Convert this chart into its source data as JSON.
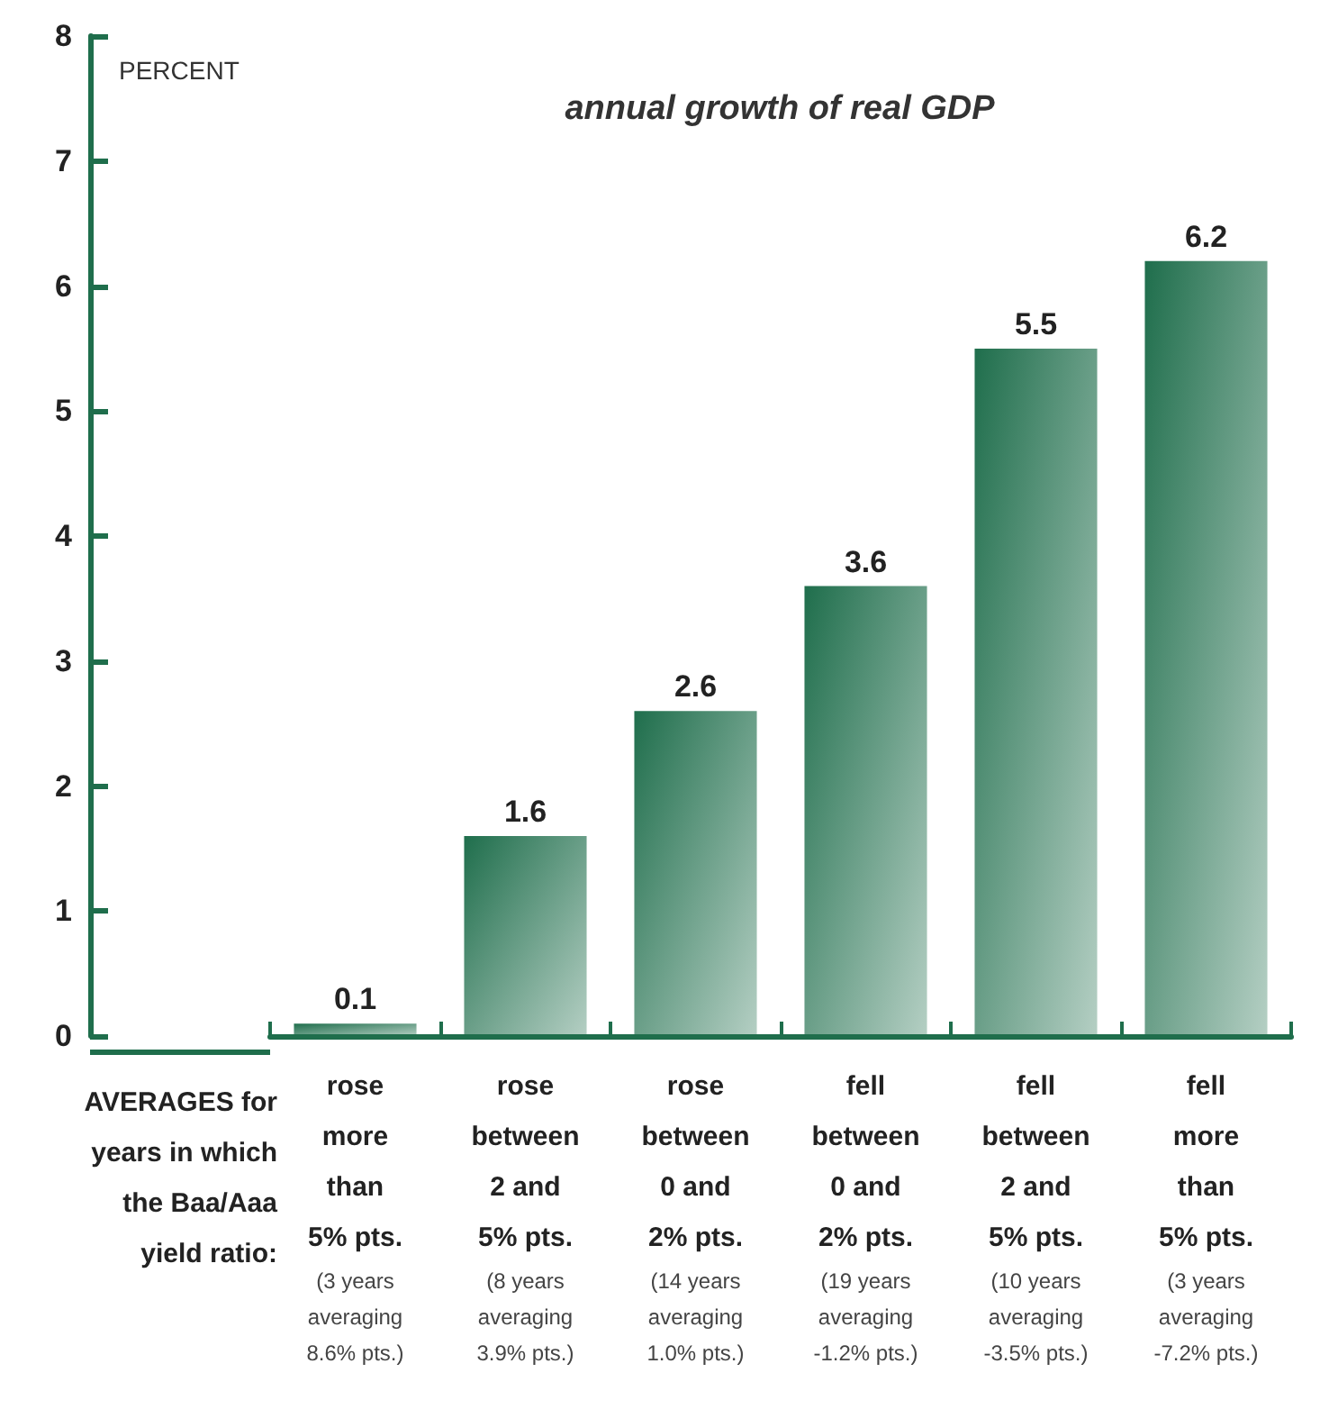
{
  "chart_data": {
    "type": "bar",
    "title": "annual growth of real GDP",
    "ylabel": "PERCENT",
    "xlabel": "AVERAGES for\nyears in which\nthe Baa/Aaa\nyield ratio:",
    "categories": [
      "rose\nmore\nthan\n5% pts.\n(3 years\naveraging\n8.6% pts.)",
      "rose\nbetween\n2 and\n5% pts.\n(8 years\naveraging\n3.9% pts.)",
      "rose\nbetween\n0 and\n2% pts.\n(14 years\naveraging\n1.0% pts.)",
      "fell\nbetween\n0 and\n2% pts.\n(19 years\naveraging\n-1.2% pts.)",
      "fell\nbetween\n2 and\n5% pts.\n(10 years\naveraging\n-3.5% pts.)",
      "fell\nmore\nthan\n5% pts.\n(3 years\naveraging\n-7.2% pts.)"
    ],
    "values": [
      0.1,
      1.6,
      2.6,
      3.6,
      5.5,
      6.2
    ],
    "color": "#1f6e4c",
    "ylim": [
      0,
      8
    ],
    "yticks": [
      0,
      1,
      2,
      3,
      4,
      5,
      6,
      7,
      8
    ],
    "data_labels": true,
    "grid": false
  }
}
